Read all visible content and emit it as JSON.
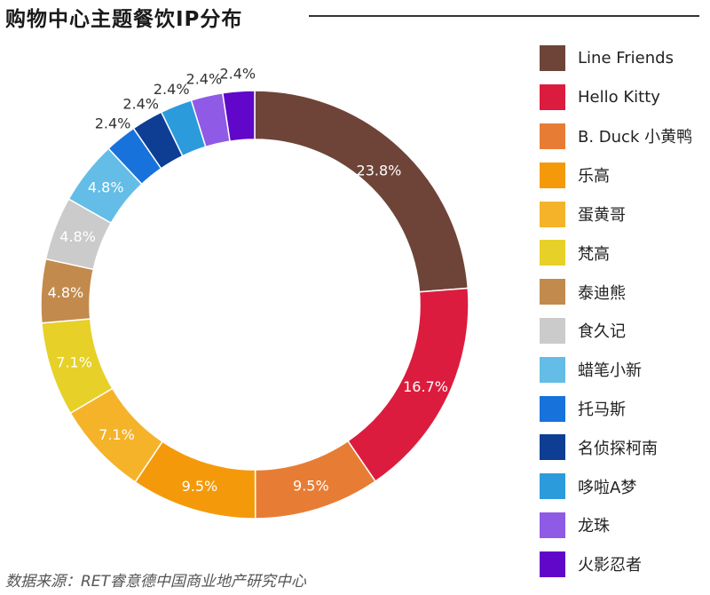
{
  "title": "购物中心主题餐饮IP分布",
  "source": "数据来源：RET睿意德中国商业地产研究中心",
  "chart_data": {
    "type": "donut",
    "title": "购物中心主题餐饮IP分布",
    "unit": "%",
    "legend_position": "right",
    "series": [
      {
        "name": "Line Friends",
        "value": 23.8,
        "label": "23.8%",
        "color": "#6e4438"
      },
      {
        "name": "Hello Kitty",
        "value": 16.7,
        "label": "16.7%",
        "color": "#dc1c3e"
      },
      {
        "name": "B. Duck 小黄鸭",
        "value": 9.5,
        "label": "9.5%",
        "color": "#e77d34"
      },
      {
        "name": "乐高",
        "value": 9.5,
        "label": "9.5%",
        "color": "#f49a0a"
      },
      {
        "name": "蛋黄哥",
        "value": 7.1,
        "label": "7.1%",
        "color": "#f5b32a"
      },
      {
        "name": "梵高",
        "value": 7.1,
        "label": "7.1%",
        "color": "#e7d028"
      },
      {
        "name": "泰迪熊",
        "value": 4.8,
        "label": "4.8%",
        "color": "#c28a4c"
      },
      {
        "name": "食久记",
        "value": 4.8,
        "label": "4.8%",
        "color": "#cbcbcb"
      },
      {
        "name": "蜡笔小新",
        "value": 4.8,
        "label": "4.8%",
        "color": "#63bde6"
      },
      {
        "name": "托马斯",
        "value": 2.4,
        "label": "2.4%",
        "color": "#1872dc"
      },
      {
        "name": "名侦探柯南",
        "value": 2.4,
        "label": "2.4%",
        "color": "#0e3d94"
      },
      {
        "name": "哆啦A梦",
        "value": 2.4,
        "label": "2.4%",
        "color": "#2c9bdb"
      },
      {
        "name": "龙珠",
        "value": 2.4,
        "label": "2.4%",
        "color": "#8f5ae6"
      },
      {
        "name": "火影忍者",
        "value": 2.4,
        "label": "2.4%",
        "color": "#6007c9"
      }
    ]
  }
}
